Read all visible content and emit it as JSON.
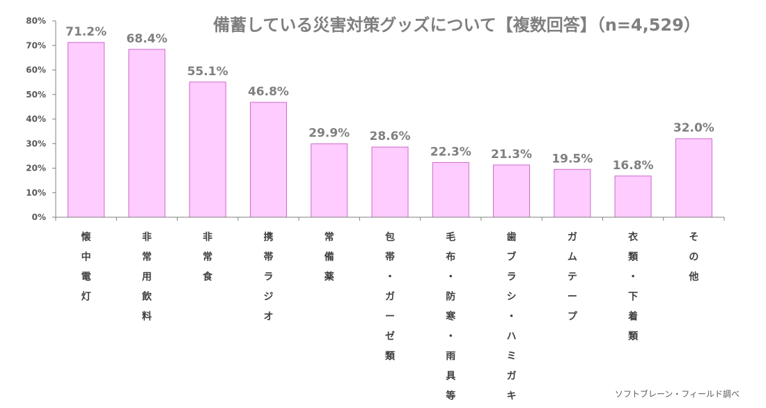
{
  "chart_data": {
    "type": "bar",
    "title": "備蓄している災害対策グッズについて【複数回答】（n=4,529）",
    "categories": [
      "懐中電灯",
      "非常用飲料",
      "非常食",
      "携帯ラジオ",
      "常備薬",
      "包帯・ガーゼ類",
      "毛布・防寒・雨具等",
      "歯ブラシ・ハミガキ",
      "ガムテープ",
      "衣類・下着類",
      "その他"
    ],
    "values": [
      71.2,
      68.4,
      55.1,
      46.8,
      29.9,
      28.6,
      22.3,
      21.3,
      19.5,
      16.8,
      32.0
    ],
    "value_labels": [
      "71.2%",
      "68.4%",
      "55.1%",
      "46.8%",
      "29.9%",
      "28.6%",
      "22.3%",
      "21.3%",
      "19.5%",
      "16.8%",
      "32.0%"
    ],
    "y_ticks": [
      "0%",
      "10%",
      "20%",
      "30%",
      "40%",
      "50%",
      "60%",
      "70%",
      "80%"
    ],
    "ylim": [
      0,
      80
    ],
    "xlabel": "",
    "ylabel": "",
    "grid": false,
    "legend": "none",
    "colors": {
      "bar_fill": "#ffccff",
      "bar_stroke": "#cc66cc",
      "axis": "#7f7f7f",
      "title": "#7f7f7f",
      "data_label": "#7f7f7f",
      "category_text": "#404040"
    },
    "source_note": "ソフトブレーン・フィールド調べ"
  }
}
